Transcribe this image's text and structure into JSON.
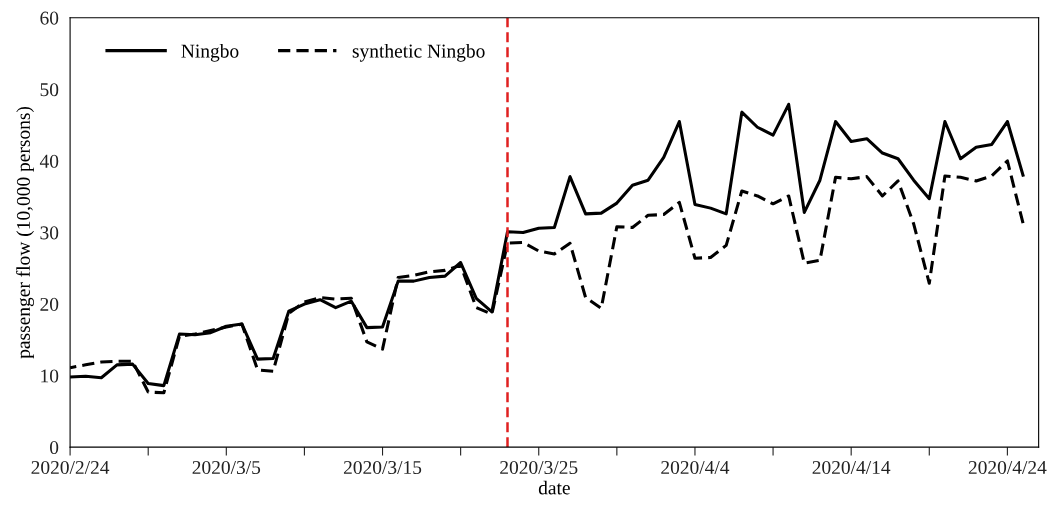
{
  "chart_data": {
    "type": "line",
    "xlabel": "date",
    "ylabel": "passenger flow (10,000 persons)",
    "x": [
      "2020-02-24",
      "2020-02-25",
      "2020-02-26",
      "2020-02-27",
      "2020-02-28",
      "2020-02-29",
      "2020-03-01",
      "2020-03-02",
      "2020-03-03",
      "2020-03-04",
      "2020-03-05",
      "2020-03-06",
      "2020-03-07",
      "2020-03-08",
      "2020-03-09",
      "2020-03-10",
      "2020-03-11",
      "2020-03-12",
      "2020-03-13",
      "2020-03-14",
      "2020-03-15",
      "2020-03-16",
      "2020-03-17",
      "2020-03-18",
      "2020-03-19",
      "2020-03-20",
      "2020-03-21",
      "2020-03-22",
      "2020-03-23",
      "2020-03-24",
      "2020-03-25",
      "2020-03-26",
      "2020-03-27",
      "2020-03-28",
      "2020-03-29",
      "2020-03-30",
      "2020-03-31",
      "2020-04-01",
      "2020-04-02",
      "2020-04-03",
      "2020-04-04",
      "2020-04-05",
      "2020-04-06",
      "2020-04-07",
      "2020-04-08",
      "2020-04-09",
      "2020-04-10",
      "2020-04-11",
      "2020-04-12",
      "2020-04-13",
      "2020-04-14",
      "2020-04-15",
      "2020-04-16",
      "2020-04-17",
      "2020-04-18",
      "2020-04-19",
      "2020-04-20",
      "2020-04-21",
      "2020-04-22",
      "2020-04-23",
      "2020-04-24",
      "2020-04-25"
    ],
    "series": [
      {
        "name": "Ningbo",
        "color": "#000000",
        "line_style": "solid",
        "values": [
          9.8,
          9.9,
          9.7,
          11.5,
          11.6,
          8.9,
          8.6,
          15.8,
          15.7,
          16.0,
          16.9,
          17.2,
          12.3,
          12.4,
          19.0,
          20.0,
          20.6,
          19.5,
          20.4,
          16.7,
          16.8,
          23.2,
          23.2,
          23.7,
          23.9,
          25.8,
          20.8,
          18.9,
          30.1,
          30.0,
          30.6,
          30.7,
          37.8,
          32.6,
          32.7,
          34.1,
          36.6,
          37.3,
          40.5,
          45.5,
          33.9,
          33.4,
          32.6,
          46.8,
          44.7,
          43.6,
          47.9,
          32.8,
          37.3,
          45.5,
          42.7,
          43.1,
          41.1,
          40.3,
          37.3,
          34.7,
          45.5,
          40.3,
          41.9,
          42.3,
          45.5,
          38.0
        ]
      },
      {
        "name": "synthetic Ningbo",
        "color": "#000000",
        "line_style": "dashed",
        "values": [
          11.1,
          11.5,
          11.9,
          12.0,
          12.0,
          7.7,
          7.6,
          15.5,
          15.8,
          16.3,
          16.8,
          17.2,
          10.8,
          10.6,
          18.7,
          20.3,
          20.9,
          20.7,
          20.8,
          14.7,
          13.7,
          23.7,
          24.0,
          24.5,
          24.7,
          25.4,
          19.5,
          18.6,
          28.5,
          28.6,
          27.4,
          27.0,
          28.5,
          20.9,
          19.4,
          30.8,
          30.7,
          32.4,
          32.5,
          34.2,
          26.4,
          26.5,
          28.2,
          35.8,
          35.1,
          34.0,
          35.1,
          25.7,
          26.1,
          37.7,
          37.5,
          37.8,
          35.1,
          37.2,
          31.2,
          22.9,
          37.9,
          37.7,
          37.2,
          37.9,
          40.0,
          31.3
        ]
      }
    ],
    "xlim": [
      "2020-02-24",
      "2020-04-26"
    ],
    "xticks": [
      {
        "value": "2020-02-24",
        "label": "2020/2/24"
      },
      {
        "value": "2020-02-29",
        "label": null
      },
      {
        "value": "2020-03-05",
        "label": "2020/3/5"
      },
      {
        "value": "2020-03-10",
        "label": null
      },
      {
        "value": "2020-03-15",
        "label": "2020/3/15"
      },
      {
        "value": "2020-03-20",
        "label": null
      },
      {
        "value": "2020-03-25",
        "label": "2020/3/25"
      },
      {
        "value": "2020-03-30",
        "label": null
      },
      {
        "value": "2020-04-04",
        "label": "2020/4/4"
      },
      {
        "value": "2020-04-09",
        "label": null
      },
      {
        "value": "2020-04-14",
        "label": "2020/4/14"
      },
      {
        "value": "2020-04-19",
        "label": null
      },
      {
        "value": "2020-04-24",
        "label": "2020/4/24"
      }
    ],
    "ylim": [
      0,
      60
    ],
    "yticks": [
      0,
      10,
      20,
      30,
      40,
      50,
      60
    ],
    "ref_lines": [
      {
        "axis": "x",
        "value": "2020-03-23",
        "color": "#e02020",
        "line_style": "dashed"
      }
    ],
    "grid": false,
    "legend": "top left",
    "marker": "none"
  }
}
